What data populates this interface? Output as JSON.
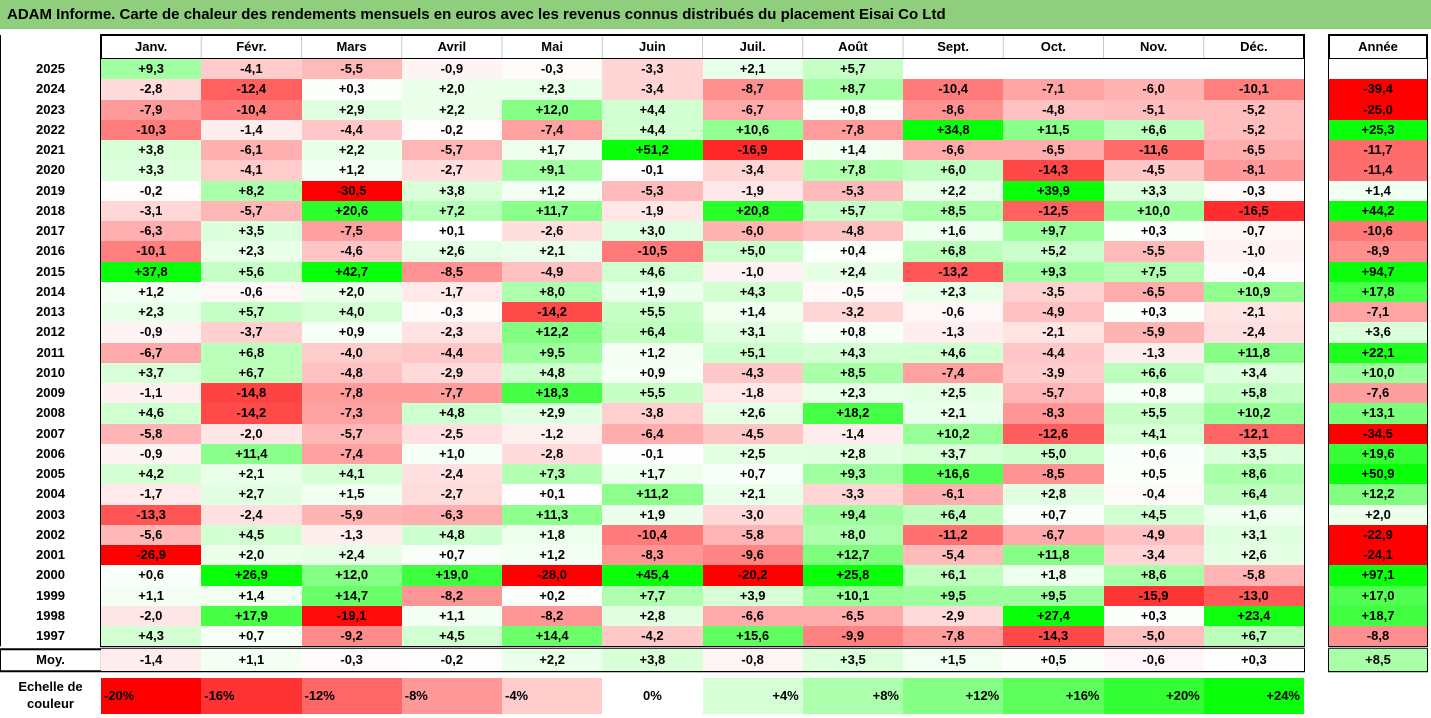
{
  "title": "ADAM Informe. Carte de chaleur des rendements mensuels en euros avec les revenus connus distribués du placement Eisai Co Ltd",
  "chart_data": {
    "type": "heatmap",
    "title": "ADAM Informe. Carte de chaleur des rendements mensuels en euros avec les revenus connus distribués du placement Eisai Co Ltd",
    "columns": [
      "Janv.",
      "Févr.",
      "Mars",
      "Avril",
      "Mai",
      "Juin",
      "Juil.",
      "Août",
      "Sept.",
      "Oct.",
      "Nov.",
      "Déc."
    ],
    "year_column_label": "Année",
    "rows": [
      {
        "year": "2025",
        "values": [
          "+9,3",
          "-4,1",
          "-5,5",
          "-0,9",
          "-0,3",
          "-3,3",
          "+2,1",
          "+5,7",
          "",
          "",
          "",
          ""
        ],
        "annual": ""
      },
      {
        "year": "2024",
        "values": [
          "-2,8",
          "-12,4",
          "+0,3",
          "+2,0",
          "+2,3",
          "-3,4",
          "-8,7",
          "+8,7",
          "-10,4",
          "-7,1",
          "-6,0",
          "-10,1"
        ],
        "annual": "-39,4"
      },
      {
        "year": "2023",
        "values": [
          "-7,9",
          "-10,4",
          "+2,9",
          "+2,2",
          "+12,0",
          "+4,4",
          "-6,7",
          "+0,8",
          "-8,6",
          "-4,8",
          "-5,1",
          "-5,2"
        ],
        "annual": "-25,0"
      },
      {
        "year": "2022",
        "values": [
          "-10,3",
          "-1,4",
          "-4,4",
          "-0,2",
          "-7,4",
          "+4,4",
          "+10,6",
          "-7,8",
          "+34,8",
          "+11,5",
          "+6,6",
          "-5,2"
        ],
        "annual": "+25,3"
      },
      {
        "year": "2021",
        "values": [
          "+3,8",
          "-6,1",
          "+2,2",
          "-5,7",
          "+1,7",
          "+51,2",
          "-16,9",
          "+1,4",
          "-6,6",
          "-6,5",
          "-11,6",
          "-6,5"
        ],
        "annual": "-11,7"
      },
      {
        "year": "2020",
        "values": [
          "+3,3",
          "-4,1",
          "+1,2",
          "-2,7",
          "+9,1",
          "-0,1",
          "-3,4",
          "+7,8",
          "+6,0",
          "-14,3",
          "-4,5",
          "-8,1"
        ],
        "annual": "-11,4"
      },
      {
        "year": "2019",
        "values": [
          "-0,2",
          "+8,2",
          "-30,5",
          "+3,8",
          "+1,2",
          "-5,3",
          "-1,9",
          "-5,3",
          "+2,2",
          "+39,9",
          "+3,3",
          "-0,3"
        ],
        "annual": "+1,4"
      },
      {
        "year": "2018",
        "values": [
          "-3,1",
          "-5,7",
          "+20,6",
          "+7,2",
          "+11,7",
          "-1,9",
          "+20,8",
          "+5,7",
          "+8,5",
          "-12,5",
          "+10,0",
          "-16,5"
        ],
        "annual": "+44,2"
      },
      {
        "year": "2017",
        "values": [
          "-6,3",
          "+3,5",
          "-7,5",
          "+0,1",
          "-2,6",
          "+3,0",
          "-6,0",
          "-4,8",
          "+1,6",
          "+9,7",
          "+0,3",
          "-0,7"
        ],
        "annual": "-10,6"
      },
      {
        "year": "2016",
        "values": [
          "-10,1",
          "+2,3",
          "-4,6",
          "+2,6",
          "+2,1",
          "-10,5",
          "+5,0",
          "+0,4",
          "+6,8",
          "+5,2",
          "-5,5",
          "-1,0"
        ],
        "annual": "-8,9"
      },
      {
        "year": "2015",
        "values": [
          "+37,8",
          "+5,6",
          "+42,7",
          "-8,5",
          "-4,9",
          "+4,6",
          "-1,0",
          "+2,4",
          "-13,2",
          "+9,3",
          "+7,5",
          "-0,4"
        ],
        "annual": "+94,7"
      },
      {
        "year": "2014",
        "values": [
          "+1,2",
          "-0,6",
          "+2,0",
          "-1,7",
          "+8,0",
          "+1,9",
          "+4,3",
          "-0,5",
          "+2,3",
          "-3,5",
          "-6,5",
          "+10,9"
        ],
        "annual": "+17,8"
      },
      {
        "year": "2013",
        "values": [
          "+2,3",
          "+5,7",
          "+4,0",
          "-0,3",
          "-14,2",
          "+5,5",
          "+1,4",
          "-3,2",
          "-0,6",
          "-4,9",
          "+0,3",
          "-2,1"
        ],
        "annual": "-7,1"
      },
      {
        "year": "2012",
        "values": [
          "-0,9",
          "-3,7",
          "+0,9",
          "-2,3",
          "+12,2",
          "+6,4",
          "+3,1",
          "+0,8",
          "-1,3",
          "-2,1",
          "-5,9",
          "-2,4"
        ],
        "annual": "+3,6"
      },
      {
        "year": "2011",
        "values": [
          "-6,7",
          "+6,8",
          "-4,0",
          "-4,4",
          "+9,5",
          "+1,2",
          "+5,1",
          "+4,3",
          "+4,6",
          "-4,4",
          "-1,3",
          "+11,8"
        ],
        "annual": "+22,1"
      },
      {
        "year": "2010",
        "values": [
          "+3,7",
          "+6,7",
          "-4,8",
          "-2,9",
          "+4,8",
          "+0,9",
          "-4,3",
          "+8,5",
          "-7,4",
          "-3,9",
          "+6,6",
          "+3,4"
        ],
        "annual": "+10,0"
      },
      {
        "year": "2009",
        "values": [
          "-1,1",
          "-14,8",
          "-7,8",
          "-7,7",
          "+18,3",
          "+5,5",
          "-1,8",
          "+2,3",
          "+2,5",
          "-5,7",
          "+0,8",
          "+5,8"
        ],
        "annual": "-7,6"
      },
      {
        "year": "2008",
        "values": [
          "+4,6",
          "-14,2",
          "-7,3",
          "+4,8",
          "+2,9",
          "-3,8",
          "+2,6",
          "+18,2",
          "+2,1",
          "-8,3",
          "+5,5",
          "+10,2"
        ],
        "annual": "+13,1"
      },
      {
        "year": "2007",
        "values": [
          "-5,8",
          "-2,0",
          "-5,7",
          "-2,5",
          "-1,2",
          "-6,4",
          "-4,5",
          "-1,4",
          "+10,2",
          "-12,6",
          "+4,1",
          "-12,1"
        ],
        "annual": "-34,5"
      },
      {
        "year": "2006",
        "values": [
          "-0,9",
          "+11,4",
          "-7,4",
          "+1,0",
          "-2,8",
          "-0,1",
          "+2,5",
          "+2,8",
          "+3,7",
          "+5,0",
          "+0,6",
          "+3,5"
        ],
        "annual": "+19,6"
      },
      {
        "year": "2005",
        "values": [
          "+4,2",
          "+2,1",
          "+4,1",
          "-2,4",
          "+7,3",
          "+1,7",
          "+0,7",
          "+9,3",
          "+16,6",
          "-8,5",
          "+0,5",
          "+8,6"
        ],
        "annual": "+50,9"
      },
      {
        "year": "2004",
        "values": [
          "-1,7",
          "+2,7",
          "+1,5",
          "-2,7",
          "+0,1",
          "+11,2",
          "+2,1",
          "-3,3",
          "-6,1",
          "+2,8",
          "-0,4",
          "+6,4"
        ],
        "annual": "+12,2"
      },
      {
        "year": "2003",
        "values": [
          "-13,3",
          "-2,4",
          "-5,9",
          "-6,3",
          "+11,3",
          "+1,9",
          "-3,0",
          "+9,4",
          "+6,4",
          "+0,7",
          "+4,5",
          "+1,6"
        ],
        "annual": "+2,0"
      },
      {
        "year": "2002",
        "values": [
          "-5,6",
          "+4,5",
          "-1,3",
          "+4,8",
          "+1,8",
          "-10,4",
          "-5,8",
          "+8,0",
          "-11,2",
          "-6,7",
          "-4,9",
          "+3,1"
        ],
        "annual": "-22,9"
      },
      {
        "year": "2001",
        "values": [
          "-26,9",
          "+2,0",
          "+2,4",
          "+0,7",
          "+1,2",
          "-8,3",
          "-9,6",
          "+12,7",
          "-5,4",
          "+11,8",
          "-3,4",
          "+2,6"
        ],
        "annual": "-24,1"
      },
      {
        "year": "2000",
        "values": [
          "+0,6",
          "+26,9",
          "+12,0",
          "+19,0",
          "-28,0",
          "+45,4",
          "-20,2",
          "+25,8",
          "+6,1",
          "+1,8",
          "+8,6",
          "-5,8"
        ],
        "annual": "+97,1"
      },
      {
        "year": "1999",
        "values": [
          "+1,1",
          "+1,4",
          "+14,7",
          "-8,2",
          "+0,2",
          "+7,7",
          "+3,9",
          "+10,1",
          "+9,5",
          "+9,5",
          "-15,9",
          "-13,0"
        ],
        "annual": "+17,0"
      },
      {
        "year": "1998",
        "values": [
          "-2,0",
          "+17,9",
          "-19,1",
          "+1,1",
          "-8,2",
          "+2,8",
          "-6,6",
          "-6,5",
          "-2,9",
          "+27,4",
          "+0,3",
          "+23,4"
        ],
        "annual": "+18,7"
      },
      {
        "year": "1997",
        "values": [
          "+4,3",
          "+0,7",
          "-9,2",
          "+4,5",
          "+14,4",
          "-4,2",
          "+15,6",
          "-9,9",
          "-7,8",
          "-14,3",
          "-5,0",
          "+6,7"
        ],
        "annual": "-8,8"
      }
    ],
    "average": {
      "label": "Moy.",
      "values": [
        "-1,4",
        "+1,1",
        "-0,3",
        "-0,2",
        "+2,2",
        "+3,8",
        "-0,8",
        "+3,5",
        "+1,5",
        "+0,5",
        "-0,6",
        "+0,3"
      ],
      "annual": "+8,5"
    },
    "scale": {
      "label_line1": "Echelle de",
      "label_line2": "couleur",
      "steps": [
        {
          "label": "-20%",
          "value": -20,
          "color": "#ff0000"
        },
        {
          "label": "-16%",
          "value": -16,
          "color": "#ff3333"
        },
        {
          "label": "-12%",
          "value": -12,
          "color": "#ff6666"
        },
        {
          "label": "-8%",
          "value": -8,
          "color": "#ff9999"
        },
        {
          "label": "-4%",
          "value": -4,
          "color": "#ffcccc"
        },
        {
          "label": "0%",
          "value": 0,
          "color": "#ffffff"
        },
        {
          "label": "+4%",
          "value": 4,
          "color": "#d6ffd6"
        },
        {
          "label": "+8%",
          "value": 8,
          "color": "#adffad"
        },
        {
          "label": "+12%",
          "value": 12,
          "color": "#85ff85"
        },
        {
          "label": "+16%",
          "value": 16,
          "color": "#5cff5c"
        },
        {
          "label": "+20%",
          "value": 20,
          "color": "#33ff33"
        },
        {
          "label": "+24%",
          "value": 24,
          "color": "#0aff0a"
        }
      ]
    }
  }
}
